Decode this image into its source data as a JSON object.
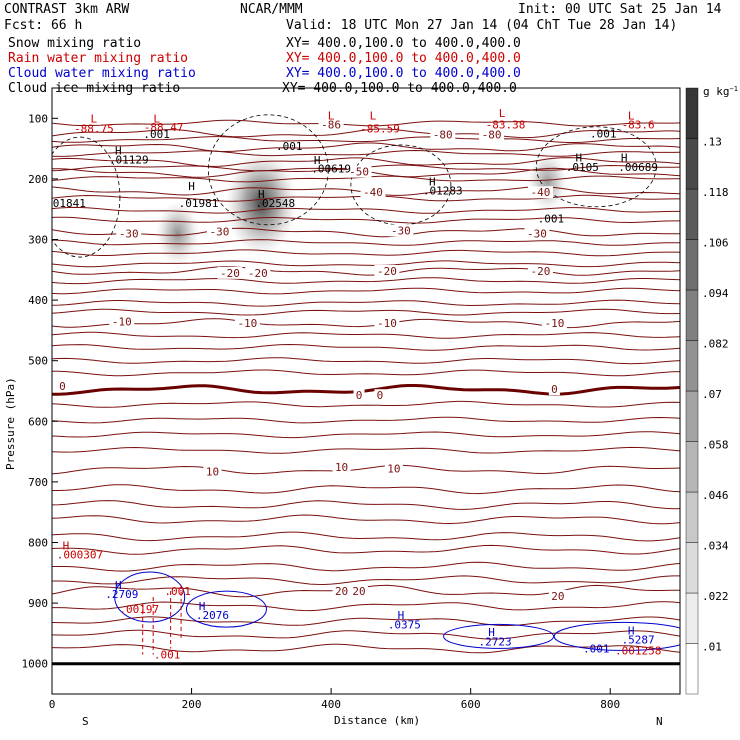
{
  "header": {
    "model": "CONTRAST   3km ARW",
    "org": "NCAR/MMM",
    "init": "Init: 00 UTC Sat 25 Jan 14",
    "fcst": "Fcst:   66 h",
    "valid": "Valid: 18 UTC Mon 27 Jan 14 (04 ChT Tue 28 Jan 14)",
    "fields": [
      {
        "name": "Snow mixing ratio",
        "xy": "XY= 400.0,100.0 to 400.0,400.0",
        "color": "#000000"
      },
      {
        "name": "Rain water mixing ratio",
        "xy": "XY= 400.0,100.0 to 400.0,400.0",
        "color": "#cc0000"
      },
      {
        "name": "Cloud water mixing ratio",
        "xy": "XY= 400.0,100.0 to 400.0,400.0",
        "color": "#0000cc"
      },
      {
        "name": "Cloud ice mixing ratio",
        "xy": "XY= 400.0,100.0 to 400.0,400.0",
        "color": "#000000"
      }
    ]
  },
  "chart_data": {
    "type": "heatmap",
    "xlabel": "Distance (km)",
    "ylabel": "Pressure (hPa)",
    "xlim": [
      0,
      900
    ],
    "ylim": [
      1050,
      50
    ],
    "xticks": [
      0,
      200,
      400,
      600,
      800
    ],
    "yticks": [
      100,
      200,
      300,
      400,
      500,
      600,
      700,
      800,
      900,
      1000
    ],
    "x_end_labels": {
      "left": "S",
      "right": "N"
    },
    "colorbar": {
      "unit": "g kg",
      "unit_exp": "−1",
      "ticks": [
        ".01",
        ".022",
        ".034",
        ".046",
        ".058",
        ".07",
        ".082",
        ".094",
        ".106",
        ".118",
        ".13"
      ],
      "tick_values": [
        0.01,
        0.022,
        0.034,
        0.046,
        0.058,
        0.07,
        0.082,
        0.094,
        0.106,
        0.118,
        0.13
      ]
    },
    "snow_blobs": [
      {
        "x": 300,
        "p": 240,
        "peak": 0.13
      },
      {
        "x": 180,
        "p": 290,
        "peak": 0.05
      },
      {
        "x": 710,
        "p": 205,
        "peak": 0.04
      }
    ],
    "temperature_contours_degC": [
      -80,
      -70,
      -60,
      -50,
      -40,
      -30,
      -20,
      -10,
      0,
      10,
      20
    ],
    "temperature_labels": [
      {
        "text": "-86",
        "x": 400,
        "p": 110
      },
      {
        "text": "-80",
        "x": 560,
        "p": 127
      },
      {
        "text": "-80",
        "x": 630,
        "p": 127
      },
      {
        "text": "-50",
        "x": 440,
        "p": 188
      },
      {
        "text": "-40",
        "x": 460,
        "p": 222
      },
      {
        "text": "-40",
        "x": 700,
        "p": 222
      },
      {
        "text": "-30",
        "x": 110,
        "p": 290
      },
      {
        "text": "-30",
        "x": 240,
        "p": 287
      },
      {
        "text": "-30",
        "x": 500,
        "p": 285
      },
      {
        "text": "-30",
        "x": 695,
        "p": 290
      },
      {
        "text": "-20",
        "x": 255,
        "p": 355
      },
      {
        "text": "-20",
        "x": 295,
        "p": 355
      },
      {
        "text": "-20",
        "x": 480,
        "p": 352
      },
      {
        "text": "-20",
        "x": 700,
        "p": 352
      },
      {
        "text": "-10",
        "x": 100,
        "p": 435
      },
      {
        "text": "-10",
        "x": 280,
        "p": 438
      },
      {
        "text": "-10",
        "x": 480,
        "p": 438
      },
      {
        "text": "-10",
        "x": 720,
        "p": 438
      },
      {
        "text": "0",
        "x": 15,
        "p": 542
      },
      {
        "text": "0",
        "x": 440,
        "p": 557
      },
      {
        "text": "0",
        "x": 470,
        "p": 557
      },
      {
        "text": "0",
        "x": 720,
        "p": 547
      },
      {
        "text": "10",
        "x": 230,
        "p": 683
      },
      {
        "text": "10",
        "x": 415,
        "p": 675
      },
      {
        "text": "10",
        "x": 490,
        "p": 678
      },
      {
        "text": "20",
        "x": 415,
        "p": 880
      },
      {
        "text": "20",
        "x": 440,
        "p": 880
      },
      {
        "text": "20",
        "x": 725,
        "p": 888
      }
    ],
    "extrema_labels": [
      {
        "text": "L",
        "x": 60,
        "p": 100,
        "color": "#cc0000"
      },
      {
        "text": "L",
        "x": 150,
        "p": 100,
        "color": "#cc0000"
      },
      {
        "text": "L",
        "x": 400,
        "p": 95,
        "color": "#cc0000"
      },
      {
        "text": "L",
        "x": 460,
        "p": 95,
        "color": "#cc0000"
      },
      {
        "text": "L",
        "x": 645,
        "p": 91,
        "color": "#cc0000"
      },
      {
        "text": "L",
        "x": 830,
        "p": 95,
        "color": "#cc0000"
      },
      {
        "text": "-88.75",
        "x": 60,
        "p": 117,
        "color": "#cc0000"
      },
      {
        "text": "-88.47",
        "x": 160,
        "p": 114,
        "color": "#cc0000"
      },
      {
        "text": "-85.59",
        "x": 470,
        "p": 117,
        "color": "#cc0000"
      },
      {
        "text": "-83.38",
        "x": 650,
        "p": 110,
        "color": "#cc0000"
      },
      {
        "text": "-83.6",
        "x": 840,
        "p": 110,
        "color": "#cc0000"
      },
      {
        "text": ".001",
        "x": 150,
        "p": 126,
        "color": "#000000"
      },
      {
        "text": "H",
        "x": 95,
        "p": 153,
        "color": "#000000"
      },
      {
        "text": ".01129",
        "x": 110,
        "p": 168,
        "color": "#000000"
      },
      {
        "text": ".001",
        "x": 340,
        "p": 146,
        "color": "#000000"
      },
      {
        "text": "H",
        "x": 380,
        "p": 169,
        "color": "#000000"
      },
      {
        "text": ".00619",
        "x": 400,
        "p": 183,
        "color": "#000000"
      },
      {
        "text": "H",
        "x": 545,
        "p": 204,
        "color": "#000000"
      },
      {
        "text": ".01283",
        "x": 560,
        "p": 219,
        "color": "#000000"
      },
      {
        "text": ".001",
        "x": 790,
        "p": 125,
        "color": "#000000"
      },
      {
        "text": "H",
        "x": 755,
        "p": 165,
        "color": "#000000"
      },
      {
        "text": ".0105",
        "x": 760,
        "p": 180,
        "color": "#000000"
      },
      {
        "text": "H",
        "x": 820,
        "p": 165,
        "color": "#000000"
      },
      {
        "text": ".00689",
        "x": 840,
        "p": 180,
        "color": "#000000"
      },
      {
        "text": "H",
        "x": 200,
        "p": 212,
        "color": "#000000"
      },
      {
        "text": ".01981",
        "x": 210,
        "p": 240,
        "color": "#000000"
      },
      {
        "text": "H",
        "x": 300,
        "p": 225,
        "color": "#000000"
      },
      {
        "text": ".02548",
        "x": 320,
        "p": 240,
        "color": "#000000"
      },
      {
        "text": ".01841",
        "x": 20,
        "p": 240,
        "color": "#000000"
      },
      {
        "text": ".001",
        "x": 715,
        "p": 265,
        "color": "#000000"
      },
      {
        "text": "H",
        "x": 20,
        "p": 805,
        "color": "#cc0000"
      },
      {
        "text": ".000307",
        "x": 40,
        "p": 820,
        "color": "#cc0000"
      },
      {
        "text": "H",
        "x": 95,
        "p": 870,
        "color": "#0000cc"
      },
      {
        "text": ".2709",
        "x": 100,
        "p": 885,
        "color": "#0000cc"
      },
      {
        "text": ".00197",
        "x": 125,
        "p": 910,
        "color": "#cc0000"
      },
      {
        "text": ".001",
        "x": 180,
        "p": 880,
        "color": "#cc0000"
      },
      {
        "text": "H",
        "x": 215,
        "p": 905,
        "color": "#0000cc"
      },
      {
        "text": ".2076",
        "x": 230,
        "p": 920,
        "color": "#0000cc"
      },
      {
        "text": "H",
        "x": 500,
        "p": 920,
        "color": "#0000cc"
      },
      {
        "text": ".0375",
        "x": 505,
        "p": 935,
        "color": "#0000cc"
      },
      {
        "text": "H",
        "x": 630,
        "p": 948,
        "color": "#0000cc"
      },
      {
        "text": ".2723",
        "x": 635,
        "p": 963,
        "color": "#0000cc"
      },
      {
        "text": ".001",
        "x": 780,
        "p": 975,
        "color": "#0000cc"
      },
      {
        "text": "H",
        "x": 830,
        "p": 945,
        "color": "#0000cc"
      },
      {
        "text": ".5287",
        "x": 840,
        "p": 960,
        "color": "#0000cc"
      },
      {
        "text": ".001258",
        "x": 840,
        "p": 978,
        "color": "#cc0000"
      },
      {
        "text": ".001",
        "x": 165,
        "p": 985,
        "color": "#cc0000"
      }
    ],
    "surface_pressure_hPa": 1000,
    "grid": false,
    "legend": "top-left"
  }
}
